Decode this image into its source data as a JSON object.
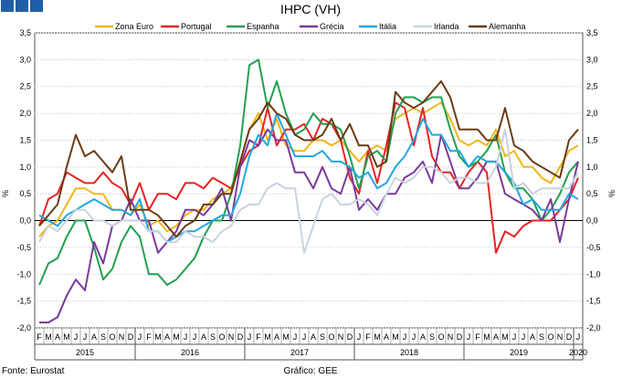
{
  "chart_data": {
    "type": "line",
    "title": "IHPC (VH)",
    "ylabel_left": "%",
    "ylabel_right": "%",
    "ylim": [
      -2.0,
      3.5
    ],
    "yticks": [
      "-2,0",
      "-1,5",
      "-1,0",
      "-0,5",
      "0,0",
      "0,5",
      "1,0",
      "1,5",
      "2,0",
      "2,5",
      "3,0",
      "3,5"
    ],
    "grid": true,
    "legend_position": "top",
    "month_labels": [
      "F",
      "M",
      "A",
      "M",
      "J",
      "J",
      "A",
      "S",
      "O",
      "N",
      "D",
      "J",
      "F",
      "M",
      "A",
      "M",
      "J",
      "J",
      "A",
      "S",
      "O",
      "N",
      "D",
      "J",
      "F",
      "M",
      "A",
      "M",
      "J",
      "J",
      "A",
      "S",
      "O",
      "N",
      "D",
      "J",
      "F",
      "M",
      "A",
      "M",
      "J",
      "J",
      "A",
      "S",
      "O",
      "N",
      "D",
      "J",
      "F",
      "M",
      "A",
      "M",
      "J",
      "J",
      "A",
      "S",
      "O",
      "N",
      "D",
      "J"
    ],
    "year_labels": [
      "2015",
      "2016",
      "2017",
      "2018",
      "2019",
      "2020"
    ],
    "series": [
      {
        "name": "Zona Euro",
        "color": "#f2b51b",
        "values": [
          -0.3,
          -0.1,
          0.0,
          0.3,
          0.6,
          0.6,
          0.5,
          0.5,
          0.2,
          0.2,
          0.1,
          0.3,
          -0.1,
          0.0,
          -0.2,
          -0.1,
          0.1,
          0.2,
          0.2,
          0.4,
          0.5,
          0.6,
          1.1,
          1.7,
          2.0,
          1.5,
          1.9,
          1.4,
          1.3,
          1.3,
          1.5,
          1.5,
          1.4,
          1.5,
          1.3,
          1.1,
          1.3,
          1.4,
          1.3,
          1.9,
          2.0,
          2.1,
          2.0,
          2.1,
          2.2,
          1.9,
          1.5,
          1.4,
          1.5,
          1.4,
          1.7,
          1.2,
          1.3,
          1.0,
          1.0,
          0.8,
          0.7,
          1.0,
          1.3,
          1.4
        ]
      },
      {
        "name": "Portugal",
        "color": "#e82222",
        "values": [
          -0.1,
          0.4,
          0.5,
          0.9,
          0.8,
          0.7,
          0.7,
          0.9,
          0.7,
          0.6,
          0.3,
          0.7,
          0.2,
          0.5,
          0.5,
          0.4,
          0.7,
          0.7,
          0.6,
          0.8,
          0.7,
          0.6,
          1.0,
          1.3,
          1.4,
          2.1,
          1.4,
          1.7,
          1.7,
          1.8,
          1.5,
          1.9,
          1.8,
          1.5,
          0.8,
          0.5,
          1.3,
          0.7,
          1.4,
          2.2,
          2.1,
          1.4,
          2.1,
          1.2,
          0.9,
          0.9,
          0.6,
          0.9,
          1.1,
          0.9,
          -0.6,
          -0.2,
          -0.3,
          -0.1,
          0.0,
          0.0,
          0.0,
          0.2,
          0.4,
          0.8
        ]
      },
      {
        "name": "Espanha",
        "color": "#22a050",
        "values": [
          -1.2,
          -0.8,
          -0.7,
          -0.3,
          0.0,
          0.0,
          -0.5,
          -1.1,
          -0.9,
          -0.4,
          -0.1,
          -0.3,
          -1.0,
          -1.0,
          -1.2,
          -1.1,
          -0.9,
          -0.7,
          -0.3,
          0.0,
          0.0,
          0.5,
          1.4,
          2.9,
          3.0,
          2.1,
          2.6,
          2.0,
          1.6,
          1.7,
          2.0,
          1.8,
          1.8,
          1.7,
          1.2,
          0.6,
          1.2,
          1.3,
          1.1,
          2.0,
          2.3,
          2.3,
          2.2,
          2.3,
          2.3,
          1.7,
          1.2,
          1.0,
          1.1,
          1.3,
          1.6,
          0.9,
          0.6,
          0.6,
          0.4,
          0.0,
          0.2,
          0.5,
          0.9,
          1.1
        ]
      },
      {
        "name": "Grécia",
        "color": "#7a3a9a",
        "values": [
          -1.9,
          -1.9,
          -1.8,
          -1.4,
          -1.1,
          -1.3,
          -0.4,
          -0.8,
          -0.1,
          0.0,
          0.4,
          0.0,
          0.0,
          -0.6,
          -0.4,
          -0.2,
          0.2,
          0.2,
          0.1,
          0.3,
          0.6,
          0.0,
          1.0,
          1.5,
          1.4,
          1.7,
          1.5,
          1.5,
          0.9,
          0.9,
          0.6,
          1.0,
          0.6,
          0.5,
          1.0,
          0.2,
          0.4,
          0.2,
          0.5,
          0.5,
          0.8,
          0.9,
          1.1,
          0.7,
          1.6,
          1.1,
          0.6,
          0.6,
          0.8,
          1.1,
          1.1,
          0.5,
          0.4,
          0.3,
          0.2,
          0.0,
          0.4,
          -0.4,
          0.4,
          1.1
        ]
      },
      {
        "name": "Itália",
        "color": "#22a7e0",
        "values": [
          0.1,
          0.0,
          -0.1,
          0.1,
          0.2,
          0.3,
          0.4,
          0.3,
          0.2,
          0.2,
          0.1,
          0.4,
          -0.2,
          -0.2,
          -0.4,
          -0.3,
          -0.2,
          -0.2,
          -0.1,
          0.0,
          0.1,
          0.1,
          0.5,
          1.2,
          1.6,
          1.4,
          2.0,
          1.6,
          1.2,
          1.2,
          1.2,
          1.3,
          1.1,
          1.1,
          1.0,
          0.8,
          0.9,
          0.6,
          0.7,
          1.0,
          1.2,
          1.5,
          1.9,
          1.6,
          1.6,
          1.3,
          1.3,
          1.0,
          1.2,
          1.1,
          1.1,
          0.9,
          0.7,
          0.3,
          0.4,
          0.2,
          0.2,
          0.2,
          0.5,
          0.4
        ]
      },
      {
        "name": "Irlanda",
        "color": "#c8d3df",
        "values": [
          -0.4,
          -0.1,
          -0.2,
          0.0,
          0.2,
          0.2,
          0.0,
          0.0,
          -0.1,
          0.0,
          0.0,
          0.0,
          -0.2,
          -0.2,
          -0.4,
          -0.4,
          -0.2,
          -0.3,
          -0.3,
          -0.4,
          -0.2,
          -0.1,
          0.2,
          0.3,
          0.3,
          0.6,
          0.7,
          0.6,
          0.6,
          -0.6,
          -0.1,
          0.4,
          0.5,
          0.3,
          0.3,
          0.4,
          0.3,
          0.1,
          0.5,
          0.8,
          0.7,
          0.8,
          1.0,
          1.0,
          0.9,
          0.7,
          0.8,
          0.8,
          0.7,
          0.7,
          1.0,
          1.7,
          0.6,
          0.7,
          0.5,
          0.6,
          0.6,
          0.6,
          0.6,
          0.9
        ]
      },
      {
        "name": "Alemanha",
        "color": "#6b3c14",
        "values": [
          -0.1,
          0.1,
          0.3,
          1.0,
          1.6,
          1.2,
          1.3,
          1.1,
          0.9,
          1.2,
          0.2,
          0.2,
          0.2,
          0.1,
          -0.1,
          -0.3,
          -0.1,
          0.0,
          0.3,
          0.3,
          0.5,
          0.5,
          1.1,
          1.7,
          1.9,
          2.2,
          2.0,
          1.9,
          1.6,
          1.5,
          1.5,
          1.6,
          1.9,
          1.5,
          1.8,
          1.4,
          1.4,
          1.0,
          1.1,
          2.4,
          2.2,
          2.1,
          2.2,
          2.4,
          2.6,
          2.3,
          1.7,
          1.7,
          1.7,
          1.5,
          1.5,
          2.1,
          1.4,
          1.3,
          1.1,
          1.0,
          0.9,
          0.8,
          1.5,
          1.7
        ]
      }
    ]
  },
  "footer": {
    "source": "Fonte: Eurostat",
    "credit": "Gráfico: GEE"
  }
}
